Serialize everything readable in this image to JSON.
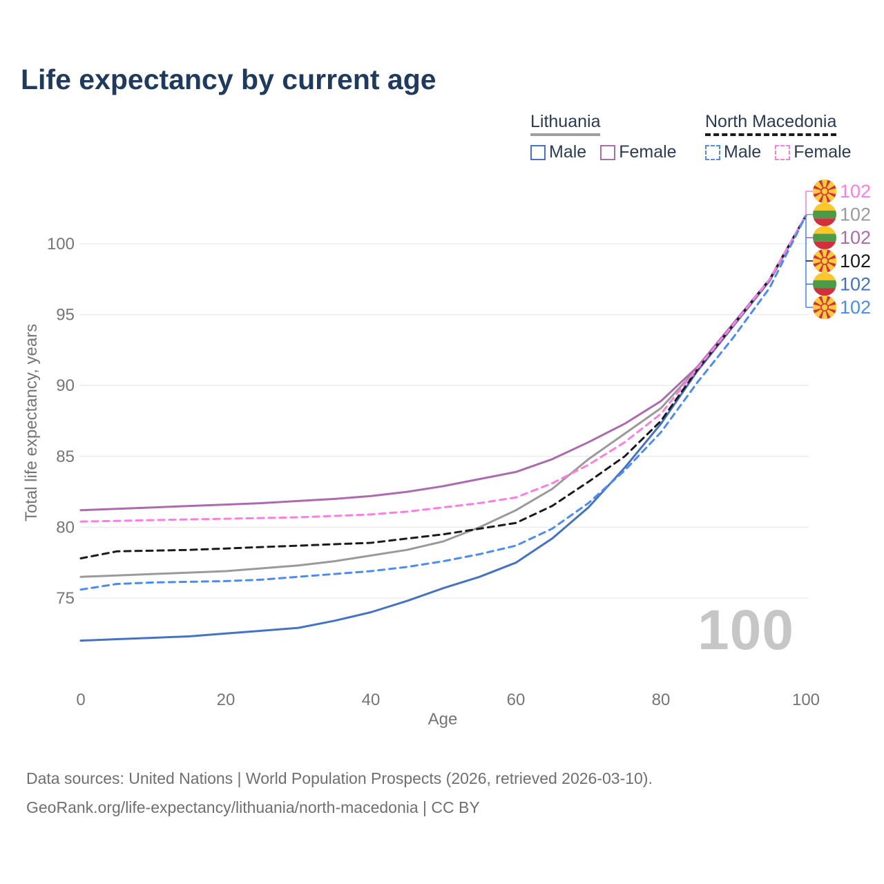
{
  "header": {
    "title": "Life expectancy by current age"
  },
  "legend": {
    "groups": [
      {
        "name": "Lithuania",
        "underline_style": "solid",
        "underline_color": "#9e9e9e",
        "items": [
          {
            "label": "Male",
            "color": "#4472c4",
            "dashed": false
          },
          {
            "label": "Female",
            "color": "#ac6bae",
            "dashed": false
          }
        ]
      },
      {
        "name": "North Macedonia",
        "underline_style": "dashed",
        "underline_color": "#1a1a1a",
        "items": [
          {
            "label": "Male",
            "color": "#4b8bf5",
            "dashed": true
          },
          {
            "label": "Female",
            "color": "#ff7de3",
            "dashed": true
          }
        ]
      }
    ]
  },
  "right_labels": [
    {
      "flag": "north-macedonia",
      "series": "North Macedonia Female",
      "value": "102",
      "color": "#ff7de3"
    },
    {
      "flag": "lithuania",
      "series": "Lithuania Total",
      "value": "102",
      "color": "#9a9a9a"
    },
    {
      "flag": "lithuania",
      "series": "Lithuania Female",
      "value": "102",
      "color": "#ac6bae"
    },
    {
      "flag": "north-macedonia",
      "series": "North Macedonia Total",
      "value": "102",
      "color": "#1a1a1a"
    },
    {
      "flag": "lithuania",
      "series": "Lithuania Male",
      "value": "102",
      "color": "#4472c4"
    },
    {
      "flag": "north-macedonia",
      "series": "North Macedonia Male",
      "value": "102",
      "color": "#4b8bf5"
    }
  ],
  "footer": {
    "line1": "Data sources: United Nations | World Population Prospects (2026, retrieved 2026-03-10).",
    "line2": "GeoRank.org/life-expectancy/lithuania/north-macedonia | CC BY"
  },
  "colors": {
    "title_text": "#1e3a5f",
    "legend_text": "#2b3a55",
    "axis_text": "#757575",
    "gridline": "#eaeaea",
    "big_age_text": "#c6c6c6",
    "footer_text": "#6f6f6f",
    "flag_lt_yellow": "#fcc62c",
    "flag_lt_green": "#4e9b47",
    "flag_lt_red": "#d22f3c",
    "flag_nm_red": "#d82e3f",
    "flag_nm_yellow": "#fbcb38"
  },
  "chart_data": {
    "type": "line",
    "title": "Life expectancy by current age",
    "xlabel": "Age",
    "ylabel": "Total life expectancy, years",
    "xlim": [
      0,
      100
    ],
    "ylim": [
      71,
      103
    ],
    "xticks": [
      0,
      20,
      40,
      60,
      80,
      100
    ],
    "yticks": [
      75,
      80,
      85,
      90,
      95,
      100
    ],
    "grid": true,
    "legend_position": "top-right",
    "current_age_label": "100",
    "end_value": 102,
    "x": [
      0,
      5,
      10,
      15,
      20,
      25,
      30,
      35,
      40,
      45,
      50,
      55,
      60,
      65,
      70,
      75,
      80,
      85,
      90,
      95,
      100
    ],
    "series": [
      {
        "name": "Lithuania Total",
        "country": "Lithuania",
        "sex": "Both",
        "style": "solid",
        "color": "#9a9a9a",
        "values": [
          76.5,
          76.6,
          76.7,
          76.8,
          76.9,
          77.1,
          77.3,
          77.6,
          78.0,
          78.4,
          79.0,
          80.0,
          81.2,
          82.7,
          84.8,
          86.6,
          88.4,
          91.2,
          94.3,
          97.5,
          102
        ]
      },
      {
        "name": "Lithuania Female",
        "country": "Lithuania",
        "sex": "Female",
        "style": "solid",
        "color": "#ac6bae",
        "values": [
          81.2,
          81.3,
          81.4,
          81.5,
          81.6,
          81.7,
          81.85,
          82.0,
          82.2,
          82.5,
          82.9,
          83.4,
          83.9,
          84.8,
          86.0,
          87.3,
          88.9,
          91.3,
          94.4,
          97.5,
          102
        ]
      },
      {
        "name": "Lithuania Male",
        "country": "Lithuania",
        "sex": "Male",
        "style": "solid",
        "color": "#4472c4",
        "values": [
          72.0,
          72.1,
          72.2,
          72.3,
          72.5,
          72.7,
          72.9,
          73.4,
          74.0,
          74.8,
          75.7,
          76.5,
          77.5,
          79.2,
          81.4,
          84.2,
          87.3,
          91.0,
          94.2,
          97.4,
          102
        ]
      },
      {
        "name": "North Macedonia Total",
        "country": "North Macedonia",
        "sex": "Both",
        "style": "dashed",
        "color": "#1a1a1a",
        "values": [
          77.8,
          78.3,
          78.35,
          78.4,
          78.5,
          78.6,
          78.7,
          78.8,
          78.9,
          79.2,
          79.5,
          79.9,
          80.3,
          81.5,
          83.2,
          85.0,
          87.5,
          91.1,
          94.3,
          97.5,
          102
        ]
      },
      {
        "name": "North Macedonia Female",
        "country": "North Macedonia",
        "sex": "Female",
        "style": "dashed",
        "color": "#ff7de3",
        "values": [
          80.4,
          80.45,
          80.5,
          80.55,
          80.6,
          80.65,
          80.7,
          80.8,
          80.9,
          81.1,
          81.4,
          81.7,
          82.1,
          83.1,
          84.4,
          86.0,
          88.0,
          91.2,
          94.3,
          97.5,
          102
        ]
      },
      {
        "name": "North Macedonia Male",
        "country": "North Macedonia",
        "sex": "Male",
        "style": "dashed",
        "color": "#4b8bf5",
        "values": [
          75.6,
          76.0,
          76.1,
          76.15,
          76.2,
          76.3,
          76.5,
          76.7,
          76.9,
          77.2,
          77.6,
          78.1,
          78.7,
          79.9,
          81.7,
          84.0,
          86.7,
          90.2,
          93.4,
          96.9,
          102
        ]
      }
    ]
  }
}
